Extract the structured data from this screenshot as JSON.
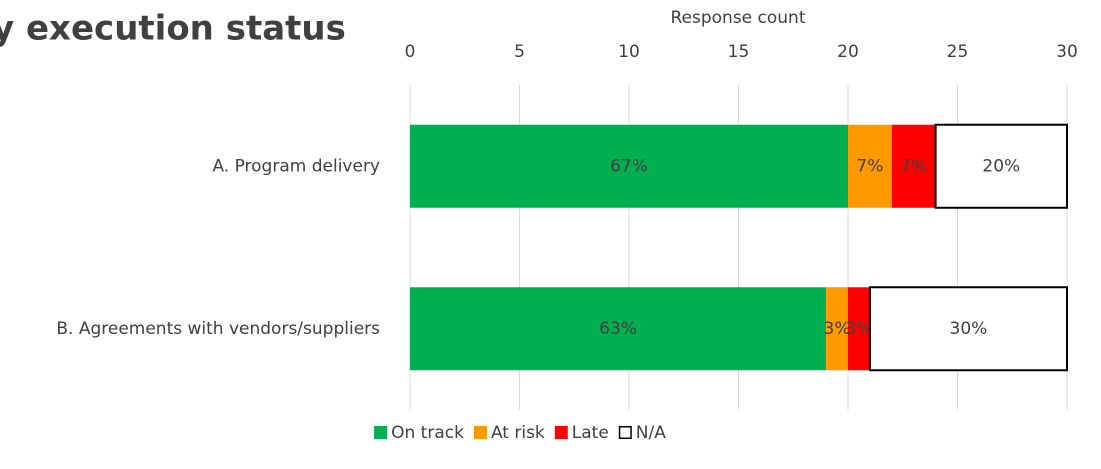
{
  "chart_data": {
    "type": "stacked_barh",
    "title": "y execution status",
    "xlabel": "Response count",
    "categories": [
      "A. Program delivery",
      "B. Agreements with vendors/suppliers"
    ],
    "series": [
      {
        "name": "On track",
        "color": "#00b050",
        "values": [
          20,
          19
        ],
        "value_labels": [
          "67%",
          "63%"
        ]
      },
      {
        "name": "At risk",
        "color": "#ff9900",
        "values": [
          2,
          1
        ],
        "value_labels": [
          "7%",
          "3%"
        ]
      },
      {
        "name": "Late",
        "color": "#ff0000",
        "values": [
          2,
          1
        ],
        "value_labels": [
          "7%",
          "3%"
        ]
      },
      {
        "name": "N/A",
        "color": "#ffffff",
        "edgecolor": "#000000",
        "values": [
          6,
          9
        ],
        "value_labels": [
          "20%",
          "30%"
        ]
      }
    ],
    "xlim": [
      0,
      30
    ],
    "xticks": [
      0,
      5,
      10,
      15,
      20,
      25,
      30
    ],
    "grid": true,
    "legend": "bottom"
  }
}
